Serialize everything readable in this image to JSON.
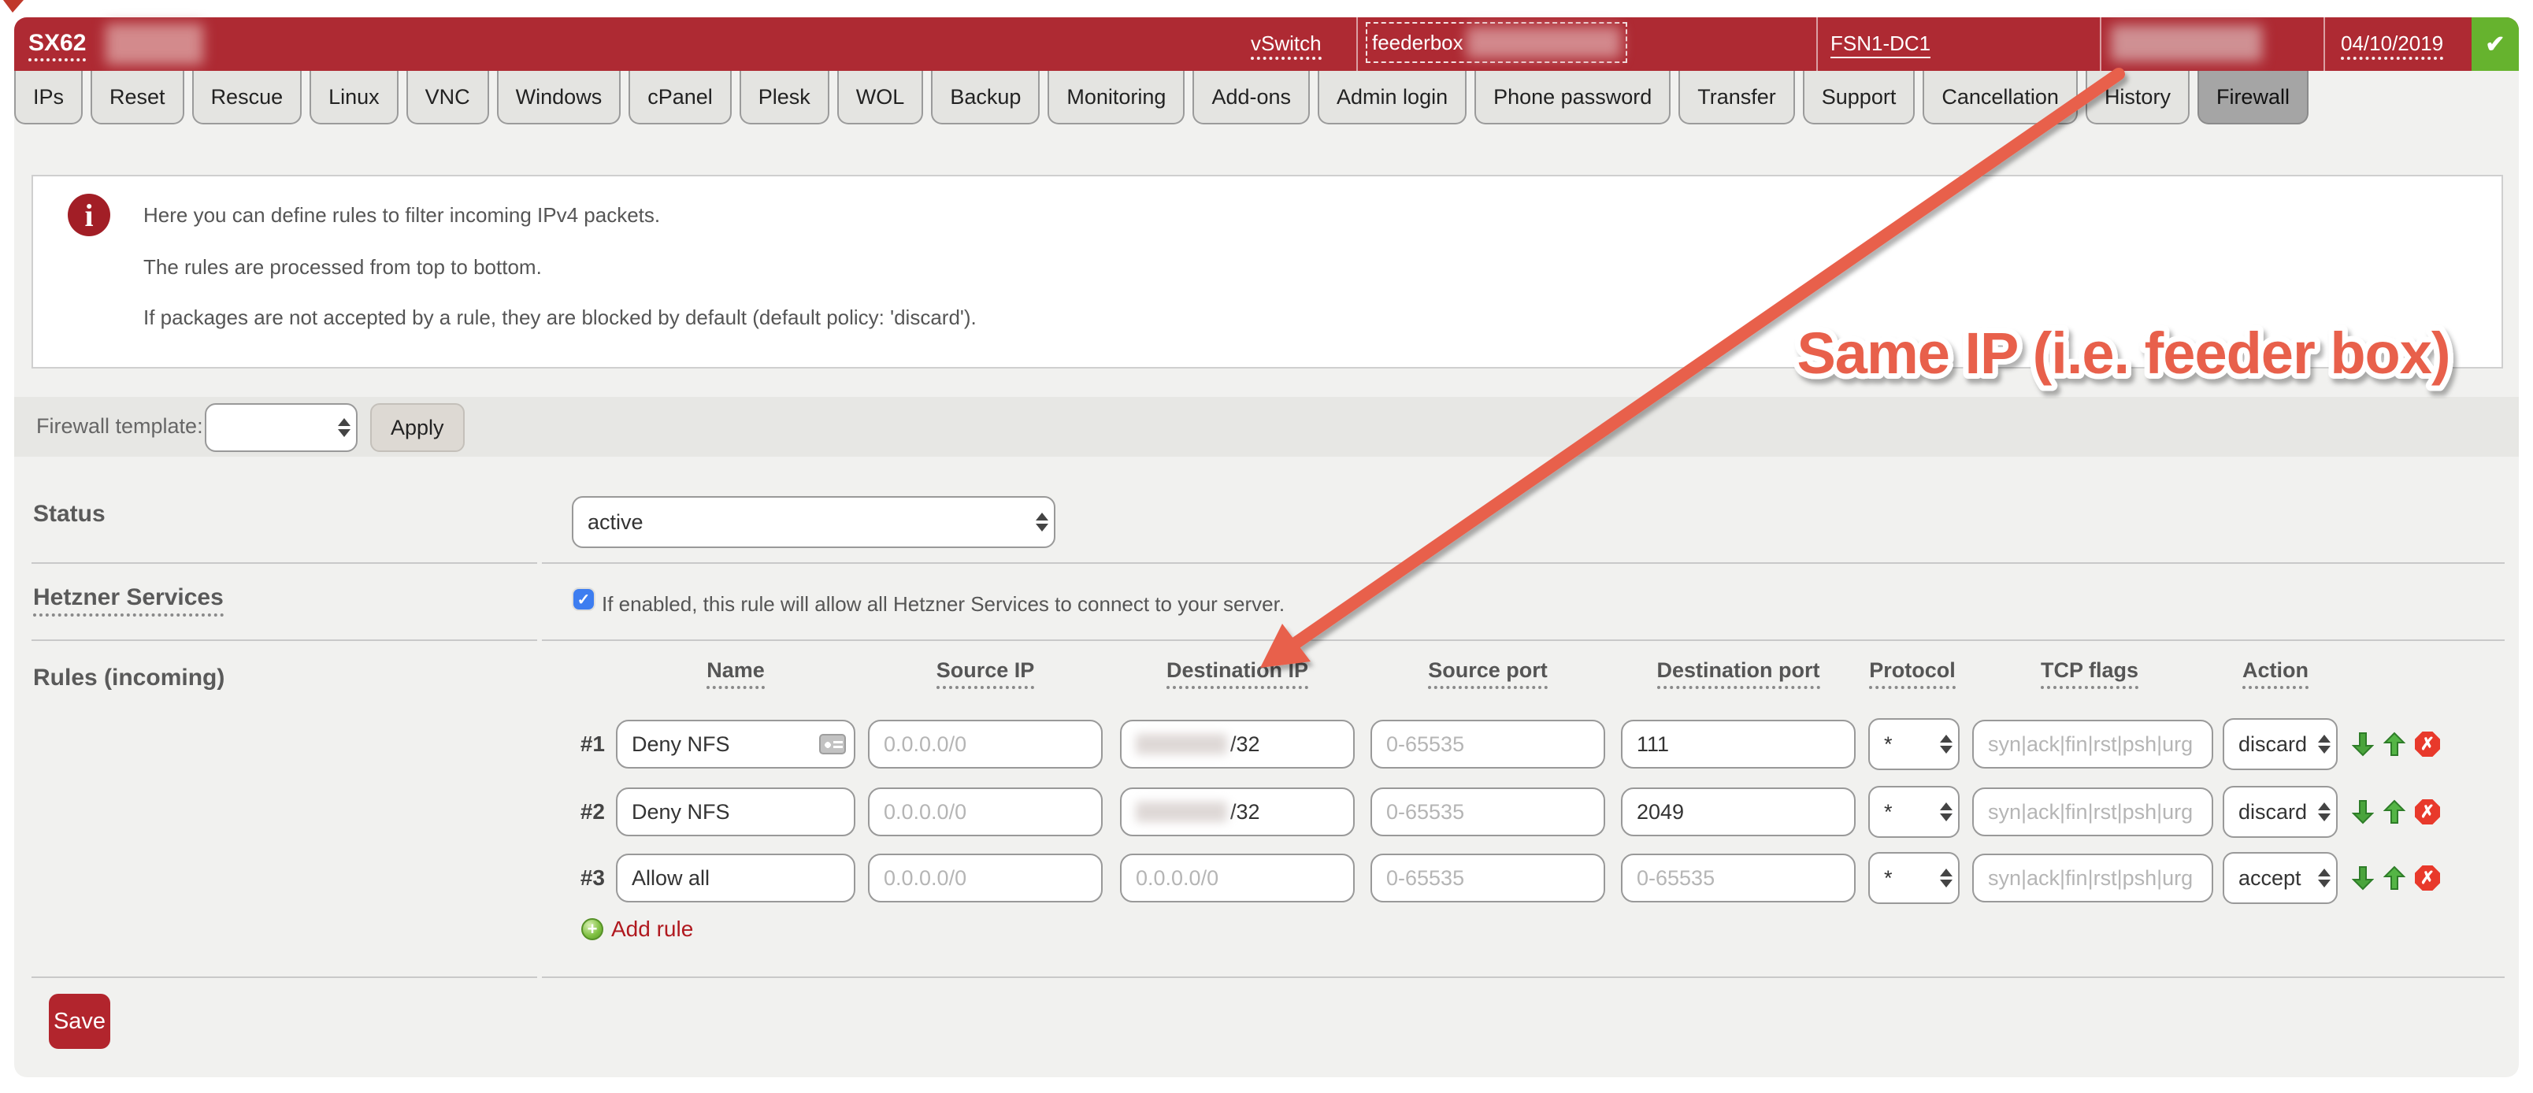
{
  "header": {
    "server_type": "SX62",
    "vswitch_label": "vSwitch",
    "feederbox_label": "feederbox",
    "datacenter": "FSN1-DC1",
    "date": "04/10/2019",
    "ok_glyph": "✔"
  },
  "tabs": {
    "items": [
      "IPs",
      "Reset",
      "Rescue",
      "Linux",
      "VNC",
      "Windows",
      "cPanel",
      "Plesk",
      "WOL",
      "Backup",
      "Monitoring",
      "Add-ons",
      "Admin login",
      "Phone password",
      "Transfer",
      "Support",
      "Cancellation",
      "History",
      "Firewall"
    ],
    "active": "Firewall"
  },
  "info": {
    "icon_glyph": "i",
    "lines": [
      "Here you can define rules to filter incoming IPv4 packets.",
      "The rules are processed from top to bottom.",
      "If packages are not accepted by a rule, they are blocked by default (default policy: 'discard')."
    ]
  },
  "template_bar": {
    "label": "Firewall template:",
    "selected_value": "",
    "apply_label": "Apply"
  },
  "status": {
    "label": "Status",
    "value": "active"
  },
  "hetzner_services": {
    "label": "Hetzner Services",
    "checked_glyph": "✓",
    "description": "If enabled, this rule will allow all Hetzner Services to connect to your server."
  },
  "rules": {
    "label": "Rules (incoming)",
    "headers": [
      "Name",
      "Source IP",
      "Destination IP",
      "Source port",
      "Destination port",
      "Protocol",
      "TCP flags",
      "Action"
    ],
    "placeholders": {
      "source_ip": "0.0.0.0/0",
      "dest_ip": "0.0.0.0/0",
      "port": "0-65535",
      "tcp_flags": "syn|ack|fin|rst|psh|urg"
    },
    "rows": [
      {
        "num": "#1",
        "name": "Deny NFS",
        "dest_suffix": "/32",
        "dest_port": "111",
        "protocol": "*",
        "action": "discard"
      },
      {
        "num": "#2",
        "name": "Deny NFS",
        "dest_suffix": "/32",
        "dest_port": "2049",
        "protocol": "*",
        "action": "discard"
      },
      {
        "num": "#3",
        "name": "Allow all",
        "protocol": "*",
        "action": "accept"
      }
    ],
    "add_label": "Add rule",
    "add_icon_glyph": "+"
  },
  "save_label": "Save",
  "annotation": {
    "text": "Same IP (i.e. feeder box)",
    "color": "#e8604c"
  },
  "colors": {
    "header_red": "#ae2a33",
    "panel_gray": "#f1f1ef",
    "band_gray": "#e7e7e4",
    "ok_green": "#66b32e",
    "save_red": "#b2252d",
    "link_red": "#b0191f",
    "checkbox_blue": "#3d7df0",
    "delete_red": "#e8392b",
    "arrow_green": "#4aa43c"
  }
}
